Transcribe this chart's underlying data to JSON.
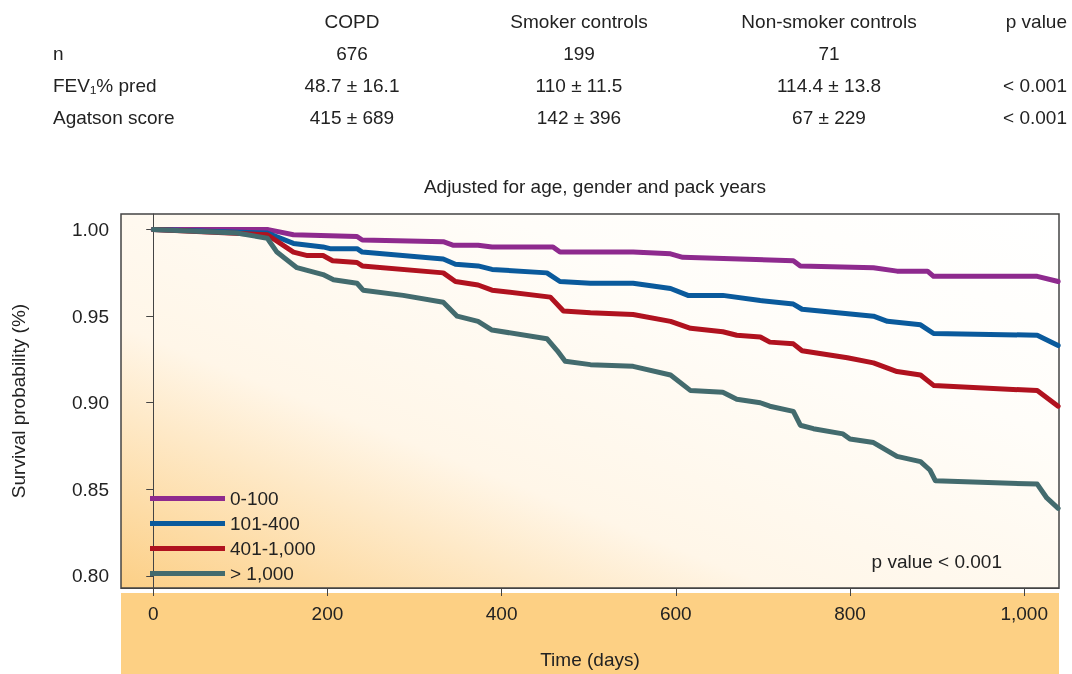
{
  "chart_data": [
    {
      "type": "other",
      "annotations": [
        "COPD",
        "Smoker controls",
        "Non-smoker controls",
        "p value",
        "n",
        "676",
        "199",
        "71",
        "FEV₁% pred",
        "48.7 ± 16.1",
        "110 ± 11.5",
        "114.4 ± 13.8",
        "< 0.001",
        "Agatson score",
        "415 ± 689",
        "142 ± 396",
        "67 ± 229",
        "< 0.001"
      ]
    },
    {
      "type": "line",
      "title": "Adjusted for age, gender and pack years",
      "xlabel": "Time (days)",
      "ylabel": "Survival probability (%)",
      "xlim": [
        -37,
        1040
      ],
      "xticks": [
        0,
        200,
        400,
        600,
        800,
        {
          "value": 1000,
          "label": "1,000"
        }
      ],
      "ylim": [
        0.793,
        1.009
      ],
      "yticks": [
        {
          "value": 0.8,
          "label": "0.80"
        },
        {
          "value": 0.85,
          "label": "0.85"
        },
        {
          "value": 0.9,
          "label": "0.90"
        },
        {
          "value": 0.95,
          "label": "0.95"
        },
        {
          "value": 1,
          "label": "1.00"
        }
      ],
      "legend": "bottom left",
      "marker": "none",
      "line_style": "solid",
      "annotations": [
        "p value < 0.001"
      ],
      "series": [
        {
          "name": "0-100",
          "color": "#8e2a8e",
          "x": [
            0,
            132,
            161,
            234,
            240,
            333,
            344,
            373,
            389,
            459,
            467,
            551,
            594,
            608,
            735,
            743,
            827,
            854,
            889,
            896,
            1015,
            1039
          ],
          "values": [
            1.0,
            1.0,
            0.997,
            0.996,
            0.994,
            0.993,
            0.991,
            0.991,
            0.99,
            0.99,
            0.987,
            0.987,
            0.986,
            0.984,
            0.982,
            0.979,
            0.978,
            0.976,
            0.976,
            0.973,
            0.973,
            0.97
          ]
        },
        {
          "name": "101-400",
          "color": "#0a5a9c",
          "x": [
            0,
            131,
            161,
            195,
            203,
            234,
            240,
            333,
            347,
            373,
            389,
            452,
            467,
            502,
            551,
            594,
            614,
            654,
            697,
            735,
            745,
            827,
            843,
            881,
            896,
            1015,
            1039
          ],
          "values": [
            1.0,
            0.998,
            0.992,
            0.99,
            0.989,
            0.989,
            0.987,
            0.983,
            0.98,
            0.979,
            0.977,
            0.975,
            0.97,
            0.969,
            0.969,
            0.966,
            0.962,
            0.962,
            0.959,
            0.957,
            0.954,
            0.95,
            0.947,
            0.945,
            0.94,
            0.939,
            0.933
          ]
        },
        {
          "name": "401-1,000",
          "color": "#b0121f",
          "x": [
            0,
            131,
            161,
            177,
            195,
            206,
            234,
            240,
            333,
            347,
            373,
            389,
            456,
            471,
            502,
            551,
            594,
            617,
            654,
            670,
            697,
            708,
            735,
            745,
            797,
            827,
            854,
            881,
            896,
            1015,
            1039
          ],
          "values": [
            1.0,
            0.997,
            0.987,
            0.985,
            0.985,
            0.982,
            0.981,
            0.979,
            0.975,
            0.97,
            0.968,
            0.965,
            0.961,
            0.953,
            0.952,
            0.951,
            0.947,
            0.943,
            0.941,
            0.939,
            0.938,
            0.935,
            0.934,
            0.93,
            0.926,
            0.923,
            0.918,
            0.916,
            0.91,
            0.907,
            0.898
          ]
        },
        {
          "name": "> 1,000",
          "color": "#436b6e",
          "x": [
            0,
            96,
            131,
            142,
            165,
            195,
            207,
            234,
            241,
            287,
            333,
            349,
            373,
            389,
            452,
            464,
            473,
            502,
            551,
            594,
            617,
            654,
            670,
            697,
            708,
            735,
            743,
            758,
            792,
            800,
            827,
            854,
            881,
            892,
            898,
            1015,
            1026,
            1039
          ],
          "values": [
            1.0,
            0.998,
            0.995,
            0.987,
            0.978,
            0.974,
            0.971,
            0.969,
            0.965,
            0.962,
            0.958,
            0.95,
            0.947,
            0.942,
            0.937,
            0.93,
            0.924,
            0.922,
            0.921,
            0.916,
            0.907,
            0.906,
            0.902,
            0.9,
            0.898,
            0.895,
            0.887,
            0.885,
            0.882,
            0.879,
            0.877,
            0.869,
            0.866,
            0.861,
            0.855,
            0.853,
            0.845,
            0.839
          ]
        }
      ]
    }
  ]
}
